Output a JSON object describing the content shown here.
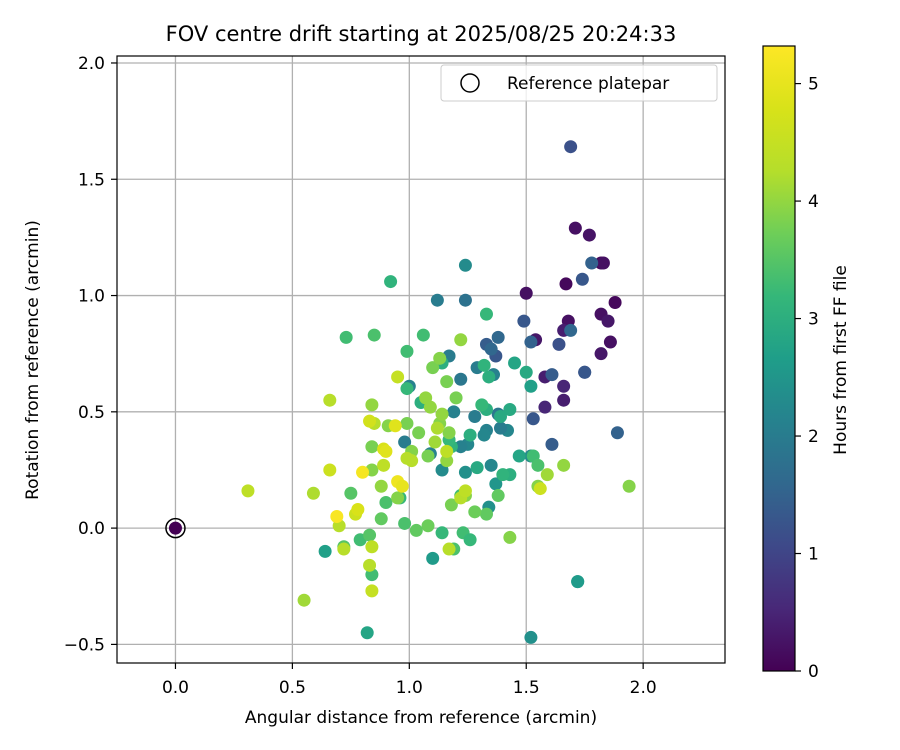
{
  "chart_data": {
    "type": "scatter",
    "title": "FOV centre drift starting at 2025/08/25 20:24:33",
    "xlabel": "Angular distance from reference (arcmin)",
    "ylabel": "Rotation from reference (arcmin)",
    "xlim": [
      -0.25,
      2.35
    ],
    "ylim": [
      -0.58,
      2.03
    ],
    "x_ticks": [
      0.0,
      0.5,
      1.0,
      1.5,
      2.0
    ],
    "x_tick_labels": [
      "0.0",
      "0.5",
      "1.0",
      "1.5",
      "2.0"
    ],
    "y_ticks": [
      -0.5,
      0.0,
      0.5,
      1.0,
      1.5,
      2.0
    ],
    "y_tick_labels": [
      "−0.5",
      "0.0",
      "0.5",
      "1.0",
      "1.5",
      "2.0"
    ],
    "grid": true,
    "colormap": "viridis",
    "colorbar": {
      "label": "Hours from first FF file",
      "min": 0,
      "max": 5.32,
      "ticks": [
        0,
        1,
        2,
        3,
        4,
        5
      ],
      "tick_labels": [
        "0",
        "1",
        "2",
        "3",
        "4",
        "5"
      ]
    },
    "legend": {
      "entries": [
        "Reference platepar"
      ],
      "location": "upper right"
    },
    "reference_point": {
      "name": "Reference platepar",
      "x": 0.0,
      "y": 0.0,
      "value": 0
    },
    "points": [
      [
        1.88,
        0.97,
        0.1
      ],
      [
        1.82,
        1.14,
        0.1
      ],
      [
        1.83,
        1.14,
        0.2
      ],
      [
        1.71,
        1.29,
        0.2
      ],
      [
        1.77,
        1.26,
        0.25
      ],
      [
        1.67,
        1.05,
        0.1
      ],
      [
        1.5,
        1.01,
        0.2
      ],
      [
        1.82,
        0.92,
        0.2
      ],
      [
        1.85,
        0.89,
        0.3
      ],
      [
        1.68,
        0.89,
        0.2
      ],
      [
        1.66,
        0.85,
        0.4
      ],
      [
        1.54,
        0.81,
        0.3
      ],
      [
        1.86,
        0.8,
        0.2
      ],
      [
        1.82,
        0.75,
        0.3
      ],
      [
        1.58,
        0.65,
        0.4
      ],
      [
        1.66,
        0.61,
        0.5
      ],
      [
        1.66,
        0.55,
        0.4
      ],
      [
        1.58,
        0.52,
        0.5
      ],
      [
        1.69,
        1.64,
        1.2
      ],
      [
        1.78,
        1.14,
        1.5
      ],
      [
        1.74,
        1.07,
        1.3
      ],
      [
        1.49,
        0.89,
        1.3
      ],
      [
        1.69,
        0.85,
        1.6
      ],
      [
        1.64,
        0.79,
        1.2
      ],
      [
        1.52,
        0.8,
        1.5
      ],
      [
        1.61,
        0.66,
        1.4
      ],
      [
        1.75,
        0.67,
        1.2
      ],
      [
        1.75,
        0.67,
        1.3
      ],
      [
        1.89,
        0.41,
        1.5
      ],
      [
        1.53,
        0.47,
        1.3
      ],
      [
        1.61,
        0.36,
        1.4
      ],
      [
        1.38,
        0.82,
        1.6
      ],
      [
        1.37,
        0.74,
        1.3
      ],
      [
        1.33,
        0.79,
        1.4
      ],
      [
        1.35,
        0.77,
        1.6
      ],
      [
        1.24,
        0.98,
        1.8
      ],
      [
        1.12,
        0.98,
        2.0
      ],
      [
        1.24,
        1.13,
        2.3
      ],
      [
        1.29,
        0.69,
        2.0
      ],
      [
        1.22,
        0.64,
        1.9
      ],
      [
        1.36,
        0.66,
        2.1
      ],
      [
        1.17,
        0.74,
        2.0
      ],
      [
        1.19,
        0.5,
        2.1
      ],
      [
        1.28,
        0.48,
        2.0
      ],
      [
        1.33,
        0.42,
        2.1
      ],
      [
        1.38,
        0.49,
        1.9
      ],
      [
        1.42,
        0.42,
        2.2
      ],
      [
        1.39,
        0.43,
        2.0
      ],
      [
        1.25,
        0.36,
        2.2
      ],
      [
        1.22,
        0.35,
        2.1
      ],
      [
        1.32,
        0.4,
        2.2
      ],
      [
        1.0,
        0.61,
        2.1
      ],
      [
        0.98,
        0.37,
        2.0
      ],
      [
        1.09,
        0.32,
        2.1
      ],
      [
        1.14,
        0.25,
        2.3
      ],
      [
        1.35,
        0.27,
        2.2
      ],
      [
        1.37,
        0.19,
        2.5
      ],
      [
        1.34,
        0.09,
        2.4
      ],
      [
        1.52,
        0.31,
        2.3
      ],
      [
        1.24,
        0.24,
        2.4
      ],
      [
        1.1,
        -0.13,
        2.6
      ],
      [
        1.52,
        -0.47,
        2.4
      ],
      [
        1.72,
        -0.23,
        2.7
      ],
      [
        1.72,
        -0.23,
        2.6
      ],
      [
        0.82,
        -0.45,
        2.8
      ],
      [
        0.64,
        -0.1,
        2.7
      ],
      [
        1.45,
        0.71,
        2.8
      ],
      [
        1.43,
        0.51,
        2.9
      ],
      [
        1.52,
        0.61,
        2.7
      ],
      [
        1.5,
        0.67,
        2.9
      ],
      [
        1.33,
        0.92,
        3.2
      ],
      [
        0.92,
        1.06,
        3.1
      ],
      [
        1.14,
        0.71,
        3.0
      ],
      [
        1.06,
        0.83,
        3.3
      ],
      [
        1.32,
        0.7,
        3.1
      ],
      [
        1.34,
        0.65,
        3.0
      ],
      [
        1.33,
        0.51,
        3.0
      ],
      [
        1.39,
        0.48,
        2.9
      ],
      [
        1.47,
        0.31,
        2.8
      ],
      [
        1.43,
        0.23,
        3.0
      ],
      [
        1.4,
        0.23,
        3.1
      ],
      [
        1.29,
        0.26,
        2.9
      ],
      [
        1.26,
        0.4,
        3.0
      ],
      [
        1.31,
        0.53,
        3.2
      ],
      [
        1.18,
        0.35,
        3.1
      ],
      [
        1.17,
        0.38,
        3.2
      ],
      [
        1.05,
        0.54,
        3.0
      ],
      [
        0.99,
        0.6,
        3.2
      ],
      [
        0.99,
        0.76,
        3.3
      ],
      [
        0.73,
        0.82,
        3.3
      ],
      [
        0.85,
        0.83,
        3.4
      ],
      [
        1.53,
        0.31,
        3.3
      ],
      [
        1.55,
        0.27,
        3.4
      ],
      [
        1.23,
        -0.02,
        3.3
      ],
      [
        1.19,
        -0.09,
        3.4
      ],
      [
        1.26,
        -0.05,
        3.2
      ],
      [
        1.14,
        -0.02,
        3.2
      ],
      [
        1.22,
        0.14,
        3.3
      ],
      [
        0.96,
        0.13,
        3.2
      ],
      [
        0.9,
        0.11,
        3.4
      ],
      [
        0.98,
        0.02,
        3.4
      ],
      [
        0.75,
        0.15,
        3.5
      ],
      [
        0.79,
        -0.05,
        3.3
      ],
      [
        0.83,
        -0.03,
        3.5
      ],
      [
        0.84,
        -0.2,
        3.3
      ],
      [
        0.72,
        -0.08,
        3.5
      ],
      [
        1.33,
        0.06,
        3.6
      ],
      [
        1.43,
        -0.04,
        3.9
      ],
      [
        1.55,
        0.18,
        3.9
      ],
      [
        1.59,
        0.23,
        4.1
      ],
      [
        1.66,
        0.27,
        4.0
      ],
      [
        1.94,
        0.18,
        3.9
      ],
      [
        1.38,
        0.14,
        3.6
      ],
      [
        1.28,
        0.07,
        3.7
      ],
      [
        1.18,
        0.1,
        3.8
      ],
      [
        1.24,
        0.14,
        3.9
      ],
      [
        1.08,
        0.01,
        3.7
      ],
      [
        1.03,
        -0.01,
        3.6
      ],
      [
        0.95,
        0.13,
        3.9
      ],
      [
        0.88,
        0.04,
        3.6
      ],
      [
        0.88,
        0.18,
        4.0
      ],
      [
        0.84,
        0.25,
        3.9
      ],
      [
        0.84,
        0.35,
        3.8
      ],
      [
        0.84,
        0.53,
        4.0
      ],
      [
        0.91,
        0.44,
        3.9
      ],
      [
        0.99,
        0.45,
        3.8
      ],
      [
        1.01,
        0.33,
        3.9
      ],
      [
        1.04,
        0.41,
        3.8
      ],
      [
        1.07,
        0.56,
        4.0
      ],
      [
        1.1,
        0.69,
        3.8
      ],
      [
        1.13,
        0.73,
        3.9
      ],
      [
        1.16,
        0.63,
        3.8
      ],
      [
        1.13,
        0.45,
        3.9
      ],
      [
        1.14,
        0.49,
        4.0
      ],
      [
        1.17,
        0.41,
        3.9
      ],
      [
        1.2,
        0.56,
        3.8
      ],
      [
        1.09,
        0.52,
        4.0
      ],
      [
        1.08,
        0.31,
        3.8
      ],
      [
        1.11,
        0.37,
        4.1
      ],
      [
        1.16,
        0.29,
        4.0
      ],
      [
        1.22,
        0.81,
        4.0
      ],
      [
        0.66,
        0.55,
        4.3
      ],
      [
        0.59,
        0.15,
        4.2
      ],
      [
        0.55,
        -0.31,
        4.1
      ],
      [
        0.7,
        0.01,
        4.3
      ],
      [
        0.85,
        0.45,
        4.3
      ],
      [
        0.95,
        0.65,
        4.5
      ],
      [
        0.89,
        0.27,
        4.4
      ],
      [
        0.99,
        0.3,
        4.3
      ],
      [
        1.01,
        0.29,
        4.3
      ],
      [
        1.12,
        0.43,
        4.2
      ],
      [
        1.16,
        0.33,
        4.4
      ],
      [
        1.22,
        0.13,
        4.3
      ],
      [
        1.24,
        0.16,
        4.4
      ],
      [
        1.17,
        -0.09,
        4.3
      ],
      [
        0.83,
        -0.16,
        4.3
      ],
      [
        0.84,
        -0.08,
        4.4
      ],
      [
        0.84,
        -0.27,
        4.5
      ],
      [
        0.72,
        -0.09,
        4.3
      ],
      [
        0.31,
        0.16,
        4.4
      ],
      [
        0.66,
        0.25,
        4.6
      ],
      [
        0.77,
        0.06,
        4.6
      ],
      [
        0.78,
        0.08,
        4.8
      ],
      [
        0.89,
        0.34,
        4.8
      ],
      [
        0.9,
        0.33,
        4.9
      ],
      [
        0.94,
        0.44,
        4.9
      ],
      [
        1.56,
        0.17,
        4.6
      ],
      [
        0.83,
        0.46,
        4.7
      ],
      [
        0.95,
        0.2,
        5.1
      ],
      [
        0.97,
        0.18,
        5.0
      ],
      [
        0.8,
        0.24,
        5.2
      ],
      [
        0.69,
        0.05,
        5.25
      ]
    ]
  }
}
